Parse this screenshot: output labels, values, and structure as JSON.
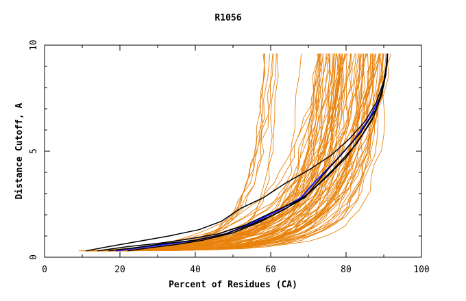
{
  "chart_data": {
    "type": "line",
    "title": "R1056",
    "xlabel": "Percent of Residues (CA)",
    "ylabel": "Distance Cutoff, A",
    "xlim": [
      0,
      100
    ],
    "ylim": [
      0,
      10
    ],
    "xticks": [
      0,
      20,
      40,
      60,
      80,
      100
    ],
    "yticks": [
      0,
      5,
      10
    ],
    "xtick_labels": [
      "0",
      "20",
      "40",
      "60",
      "80",
      "100"
    ],
    "ytick_labels": [
      "0",
      "5",
      "10"
    ],
    "grid": false,
    "legend": "none",
    "colors": {
      "models": "#e8820c",
      "black_curves": "#000000",
      "blue_curve": "#1a1aff"
    },
    "series": [
      {
        "color": "#1a1aff",
        "x": [
          19,
          25,
          32,
          40,
          48,
          55,
          62,
          68,
          72,
          77,
          82,
          86,
          89,
          90.5,
          91
        ],
        "y": [
          0.3,
          0.45,
          0.6,
          0.8,
          1.1,
          1.6,
          2.2,
          2.8,
          3.6,
          4.5,
          5.5,
          6.5,
          7.5,
          8.6,
          9.6
        ]
      },
      {
        "color": "#000000",
        "x": [
          11,
          17,
          25,
          33,
          41,
          47,
          52,
          58,
          64,
          70,
          76,
          81,
          85,
          88,
          90,
          91
        ],
        "y": [
          0.3,
          0.5,
          0.75,
          1.0,
          1.3,
          1.7,
          2.3,
          2.8,
          3.5,
          4.1,
          4.8,
          5.6,
          6.4,
          7.3,
          8.3,
          9.4
        ]
      },
      {
        "color": "#000000",
        "x": [
          14,
          22,
          30,
          38,
          46,
          53,
          59,
          65,
          69,
          74,
          79,
          84,
          88,
          90,
          91
        ],
        "y": [
          0.3,
          0.5,
          0.65,
          0.85,
          1.1,
          1.5,
          2.0,
          2.5,
          2.8,
          3.9,
          4.9,
          5.9,
          7.0,
          8.1,
          9.3
        ]
      },
      {
        "color": "#000000",
        "x": [
          17,
          24,
          32,
          40,
          48,
          55,
          62,
          68,
          73,
          78,
          83,
          87,
          89,
          90.5,
          91
        ],
        "y": [
          0.3,
          0.45,
          0.65,
          0.8,
          1.1,
          1.55,
          2.1,
          2.7,
          3.5,
          4.4,
          5.4,
          6.5,
          7.5,
          8.6,
          9.5
        ]
      },
      {
        "color": "#000000",
        "x": [
          22,
          28,
          35,
          42,
          50,
          57,
          64,
          70,
          75,
          80,
          84,
          87.5,
          89.5,
          90.5,
          91
        ],
        "y": [
          0.3,
          0.45,
          0.6,
          0.8,
          1.15,
          1.65,
          2.3,
          3.0,
          3.8,
          4.7,
          5.7,
          6.7,
          7.7,
          8.7,
          9.6
        ]
      }
    ]
  }
}
